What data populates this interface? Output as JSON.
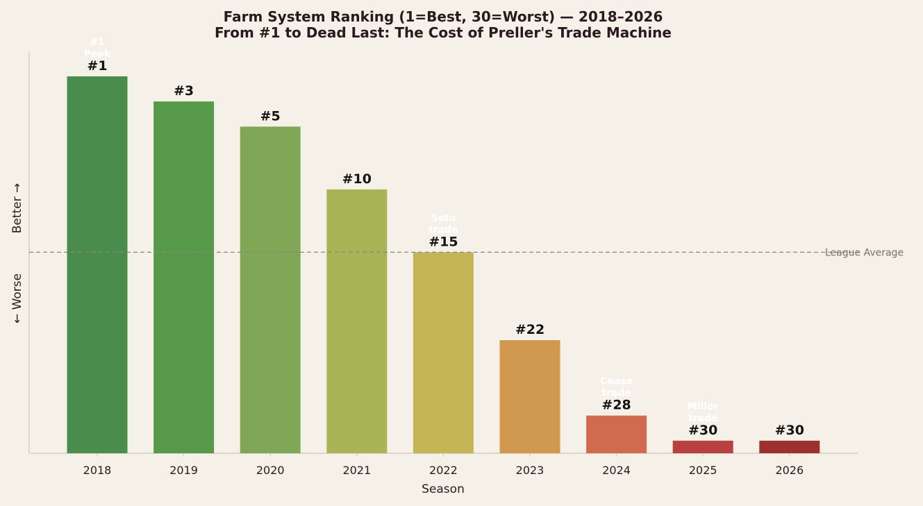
{
  "chart_data": {
    "type": "bar",
    "title": "Farm System Ranking (1=Best, 30=Worst) — 2018–2026",
    "subtitle": "From #1 to Dead Last: The Cost of Preller's Trade Machine",
    "xlabel": "Season",
    "ylabel_top": "Better →",
    "ylabel_bottom": "← Worse",
    "categories": [
      "2018",
      "2019",
      "2020",
      "2021",
      "2022",
      "2023",
      "2024",
      "2025",
      "2026"
    ],
    "values": [
      1,
      3,
      5,
      10,
      15,
      22,
      28,
      30,
      30
    ],
    "value_labels": [
      "#1",
      "#3",
      "#5",
      "#10",
      "#15",
      "#22",
      "#28",
      "#30",
      "#30"
    ],
    "colors": [
      "#4a8c4b",
      "#57994a",
      "#80a756",
      "#a8b455",
      "#c4b557",
      "#d1984f",
      "#d06b50",
      "#b84140",
      "#9e3030"
    ],
    "annotations": [
      {
        "index": 0,
        "lines": [
          "#1",
          "Peak"
        ]
      },
      {
        "index": 4,
        "lines": [
          "Soto",
          "trade"
        ]
      },
      {
        "index": 6,
        "lines": [
          "Cease",
          "trade"
        ]
      },
      {
        "index": 7,
        "lines": [
          "Miller",
          "trade"
        ]
      }
    ],
    "reference_line": {
      "value": 15,
      "label": "League Average"
    },
    "worst_rank": 31,
    "grid": false
  }
}
